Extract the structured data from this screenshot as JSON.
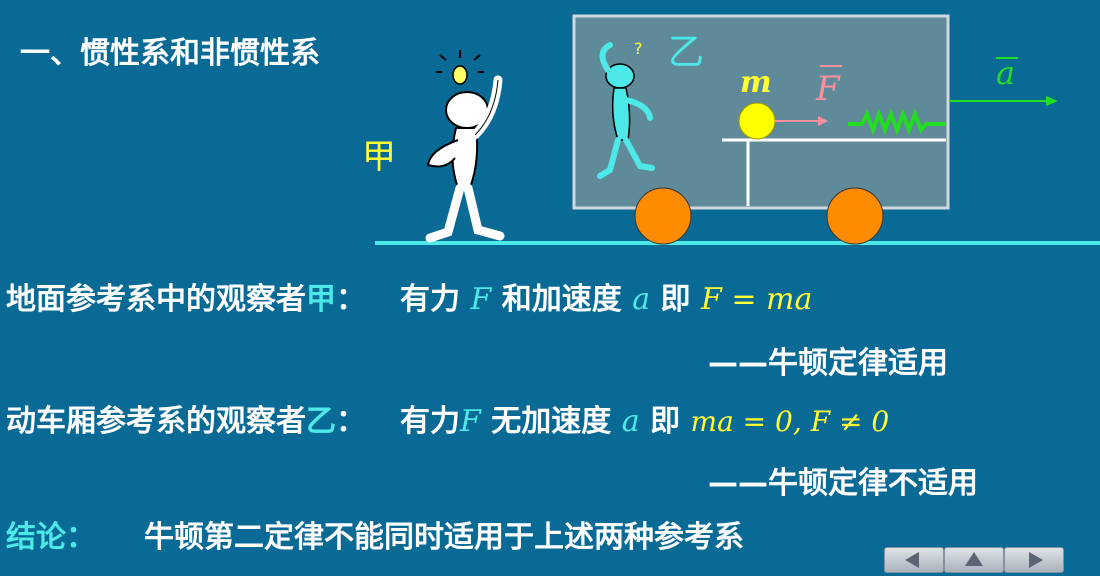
{
  "title": "一、惯性系和非惯性系",
  "figure": {
    "observer_a_label": "甲",
    "observer_b_label": "乙",
    "question_mark": "?",
    "mass_label": "m",
    "force_label": "F",
    "accel_label": "a"
  },
  "line1": {
    "prefix": "地面参考系中的观察者",
    "observer": "甲",
    "colon": "：",
    "t1": "有力",
    "m1": "F",
    "t2": "和加速度",
    "m2": "a",
    "t3": "即",
    "m3": "F = ma"
  },
  "line2": {
    "text": "——牛顿定律适用"
  },
  "line3": {
    "prefix": "动车厢参考系的观察者",
    "observer": "乙",
    "colon": "：",
    "t1": "有力",
    "m1": "F",
    "t2": "无加速度",
    "m2": "a",
    "t3": "即",
    "m3": "ma = 0, F ≠ 0"
  },
  "line4": {
    "text": "——牛顿定律不适用"
  },
  "conclusion": {
    "label": "结论：",
    "text": "牛顿第二定律不能同时适用于上述两种参考系"
  },
  "nav": {
    "prev_icon": "prev-arrow-icon",
    "home_icon": "home-arrow-icon",
    "next_icon": "next-arrow-icon"
  },
  "colors": {
    "background": "#0a6a96",
    "highlight_yellow": "#ffff33",
    "highlight_cyan": "#4de8e8",
    "force_pink": "#ff8fa0",
    "spring_green": "#22dd22",
    "wheel_orange": "#ff8c00"
  }
}
